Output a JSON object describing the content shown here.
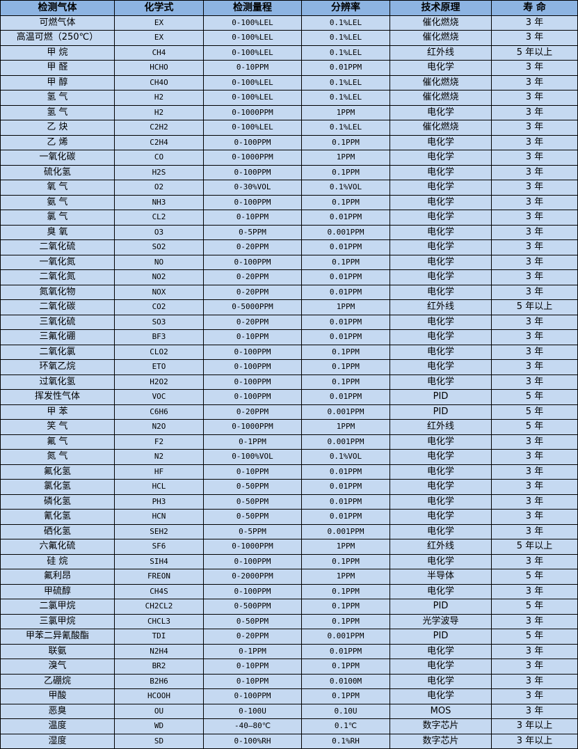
{
  "colors": {
    "header_bg": "#8db4e2",
    "row_bg": "#c5d9f1"
  },
  "table": {
    "headers": [
      "检测气体",
      "化学式",
      "检测量程",
      "分辨率",
      "技术原理",
      "寿 命"
    ],
    "rows": [
      [
        "可燃气体",
        "EX",
        "0-100%LEL",
        "0.1%LEL",
        "催化燃烧",
        "3 年"
      ],
      [
        "高温可燃（250℃）",
        "EX",
        "0-100%LEL",
        "0.1%LEL",
        "催化燃烧",
        "3 年"
      ],
      [
        "甲 烷",
        "CH4",
        "0-100%LEL",
        "0.1%LEL",
        "红外线",
        "5 年以上"
      ],
      [
        "甲 醛",
        "HCHO",
        "0-10PPM",
        "0.01PPM",
        "电化学",
        "3 年"
      ],
      [
        "甲 醇",
        "CH4O",
        "0-100%LEL",
        "0.1%LEL",
        "催化燃烧",
        "3 年"
      ],
      [
        "氢 气",
        "H2",
        "0-100%LEL",
        "0.1%LEL",
        "催化燃烧",
        "3 年"
      ],
      [
        "氢 气",
        "H2",
        "0-1000PPM",
        "1PPM",
        "电化学",
        "3 年"
      ],
      [
        "乙 炔",
        "C2H2",
        "0-100%LEL",
        "0.1%LEL",
        "催化燃烧",
        "3 年"
      ],
      [
        "乙 烯",
        "C2H4",
        "0-100PPM",
        "0.1PPM",
        "电化学",
        "3 年"
      ],
      [
        "一氧化碳",
        "CO",
        "0-1000PPM",
        "1PPM",
        "电化学",
        "3 年"
      ],
      [
        "硫化氢",
        "H2S",
        "0-100PPM",
        "0.1PPM",
        "电化学",
        "3 年"
      ],
      [
        "氧 气",
        "O2",
        "0-30%VOL",
        "0.1%VOL",
        "电化学",
        "3 年"
      ],
      [
        "氨 气",
        "NH3",
        "0-100PPM",
        "0.1PPM",
        "电化学",
        "3 年"
      ],
      [
        "氯 气",
        "CL2",
        "0-10PPM",
        "0.01PPM",
        "电化学",
        "3 年"
      ],
      [
        "臭 氧",
        "O3",
        "0-5PPM",
        "0.001PPM",
        "电化学",
        "3 年"
      ],
      [
        "二氧化硫",
        "SO2",
        "0-20PPM",
        "0.01PPM",
        "电化学",
        "3 年"
      ],
      [
        "一氧化氮",
        "NO",
        "0-100PPM",
        "0.1PPM",
        "电化学",
        "3 年"
      ],
      [
        "二氧化氮",
        "NO2",
        "0-20PPM",
        "0.01PPM",
        "电化学",
        "3 年"
      ],
      [
        "氮氧化物",
        "NOX",
        "0-20PPM",
        "0.01PPM",
        "电化学",
        "3 年"
      ],
      [
        "二氧化碳",
        "CO2",
        "0-5000PPM",
        "1PPM",
        "红外线",
        "5 年以上"
      ],
      [
        "三氧化硫",
        "SO3",
        "0-20PPM",
        "0.01PPM",
        "电化学",
        "3 年"
      ],
      [
        "三氟化硼",
        "BF3",
        "0-10PPM",
        "0.01PPM",
        "电化学",
        "3 年"
      ],
      [
        "二氧化氯",
        "CLO2",
        "0-100PPM",
        "0.1PPM",
        "电化学",
        "3 年"
      ],
      [
        "环氧乙烷",
        "ETO",
        "0-100PPM",
        "0.1PPM",
        "电化学",
        "3 年"
      ],
      [
        "过氧化氢",
        "H2O2",
        "0-100PPM",
        "0.1PPM",
        "电化学",
        "3 年"
      ],
      [
        "挥发性气体",
        "VOC",
        "0-100PPM",
        "0.01PPM",
        "PID",
        "5 年"
      ],
      [
        "甲 苯",
        "C6H6",
        "0-20PPM",
        "0.001PPM",
        "PID",
        "5 年"
      ],
      [
        "笑 气",
        "N2O",
        "0-1000PPM",
        "1PPM",
        "红外线",
        "5 年"
      ],
      [
        "氟 气",
        "F2",
        "0-1PPM",
        "0.001PPM",
        "电化学",
        "3 年"
      ],
      [
        "氮 气",
        "N2",
        "0-100%VOL",
        "0.1%VOL",
        "电化学",
        "3 年"
      ],
      [
        "氟化氢",
        "HF",
        "0-10PPM",
        "0.01PPM",
        "电化学",
        "3 年"
      ],
      [
        "氯化氢",
        "HCL",
        "0-50PPM",
        "0.01PPM",
        "电化学",
        "3 年"
      ],
      [
        "磷化氢",
        "PH3",
        "0-50PPM",
        "0.01PPM",
        "电化学",
        "3 年"
      ],
      [
        "氰化氢",
        "HCN",
        "0-50PPM",
        "0.01PPM",
        "电化学",
        "3 年"
      ],
      [
        "硒化氢",
        "SEH2",
        "0-5PPM",
        "0.001PPM",
        "电化学",
        "3 年"
      ],
      [
        "六氟化硫",
        "SF6",
        "0-1000PPM",
        "1PPM",
        "红外线",
        "5 年以上"
      ],
      [
        "硅 烷",
        "SIH4",
        "0-100PPM",
        "0.1PPM",
        "电化学",
        "3 年"
      ],
      [
        "氟利昂",
        "FREON",
        "0-2000PPM",
        "1PPM",
        "半导体",
        "5 年"
      ],
      [
        "甲硫醇",
        "CH4S",
        "0-100PPM",
        "0.1PPM",
        "电化学",
        "3 年"
      ],
      [
        "二氯甲烷",
        "CH2CL2",
        "0-500PPM",
        "0.1PPM",
        "PID",
        "5 年"
      ],
      [
        "三氯甲烷",
        "CHCL3",
        "0-50PPM",
        "0.1PPM",
        "光学波导",
        "3 年"
      ],
      [
        "甲苯二异氰酸酯",
        "TDI",
        "0-20PPM",
        "0.001PPM",
        "PID",
        "5 年"
      ],
      [
        "联氨",
        "N2H4",
        "0-1PPM",
        "0.01PPM",
        "电化学",
        "3 年"
      ],
      [
        "溴气",
        "BR2",
        "0-10PPM",
        "0.1PPM",
        "电化学",
        "3 年"
      ],
      [
        "乙硼烷",
        "B2H6",
        "0-10PPM",
        "0.0100M",
        "电化学",
        "3 年"
      ],
      [
        "甲酸",
        "HCOOH",
        "0-100PPM",
        "0.1PPM",
        "电化学",
        "3 年"
      ],
      [
        "恶臭",
        "OU",
        "0-100U",
        "0.10U",
        "MOS",
        "3 年"
      ],
      [
        "温度",
        "WD",
        "-40—80℃",
        "0.1℃",
        "数字芯片",
        "3 年以上"
      ],
      [
        "湿度",
        "SD",
        "0-100%RH",
        "0.1%RH",
        "数字芯片",
        "3 年以上"
      ]
    ]
  }
}
